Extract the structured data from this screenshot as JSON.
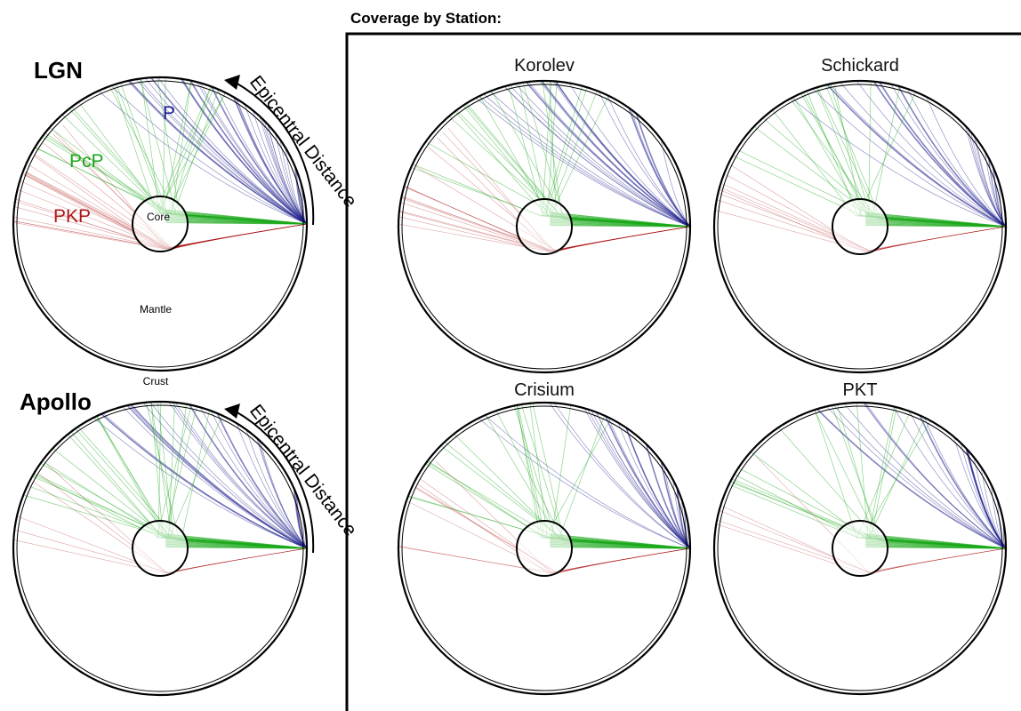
{
  "coverage_title": "Coverage by Station:",
  "panels": [
    {
      "name": "LGN",
      "label": "LGN",
      "epicentral": "Epicentral Distance",
      "phases": {
        "P": "P",
        "PcP": "PcP",
        "PKP": "PKP"
      },
      "regions": {
        "core": "Core",
        "mantle": "Mantle",
        "crust": "Crust"
      },
      "density": {
        "P": 34,
        "PcP": 26,
        "PKP": 22
      }
    },
    {
      "name": "Apollo",
      "label": "Apollo",
      "epicentral": "Epicentral Distance",
      "density": {
        "P": 26,
        "PcP": 26,
        "PKP": 6
      }
    }
  ],
  "stations": [
    {
      "name": "Korolev",
      "density": {
        "P": 22,
        "PcP": 22,
        "PKP": 16
      }
    },
    {
      "name": "Schickard",
      "density": {
        "P": 22,
        "PcP": 18,
        "PKP": 8
      }
    },
    {
      "name": "Crisium",
      "density": {
        "P": 24,
        "PcP": 20,
        "PKP": 8
      }
    },
    {
      "name": "PKT",
      "density": {
        "P": 22,
        "PcP": 18,
        "PKP": 5
      }
    }
  ],
  "colors": {
    "P": "#1c1c8c",
    "PcP": "#1aa81a",
    "PKP": "#b01818",
    "outline": "#000000"
  }
}
